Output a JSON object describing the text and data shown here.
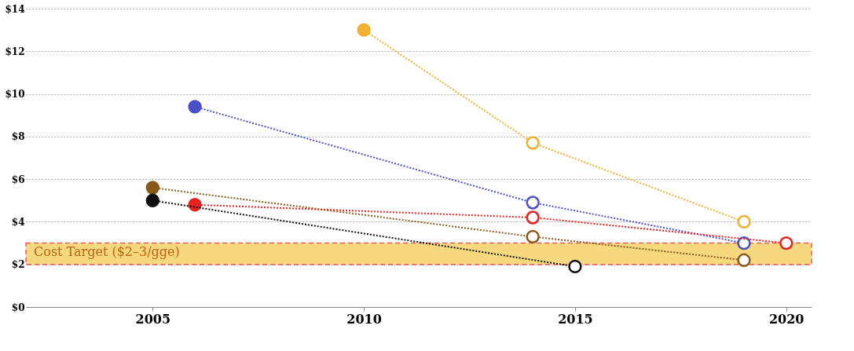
{
  "chart_data": {
    "type": "line",
    "xlim": [
      2002,
      2020.6
    ],
    "xticks": [
      2005,
      2010,
      2015,
      2020
    ],
    "ylim": [
      0,
      14
    ],
    "yticks": [
      {
        "value": 0,
        "label": "$0"
      },
      {
        "value": 2,
        "label": "$2"
      },
      {
        "value": 4,
        "label": "$4"
      },
      {
        "value": 6,
        "label": "$6"
      },
      {
        "value": 8,
        "label": "$8"
      },
      {
        "value": 10,
        "label": "$10"
      },
      {
        "value": 12,
        "label": "$12"
      },
      {
        "value": 14,
        "label": "$14"
      }
    ],
    "grid": "y",
    "line_style": "dotted",
    "marker": "circle",
    "series": [
      {
        "color": "#f0b030",
        "x": [
          2010,
          2014,
          2019
        ],
        "values": [
          13.0,
          7.7,
          4.0
        ]
      },
      {
        "color": "#4a50c8",
        "x": [
          2006,
          2014,
          2019
        ],
        "values": [
          9.4,
          4.9,
          3.0
        ]
      },
      {
        "color": "#e82020",
        "x": [
          2006,
          2014,
          2020
        ],
        "values": [
          4.8,
          4.2,
          3.0
        ]
      },
      {
        "color": "#8a5a1a",
        "x": [
          2005,
          2014,
          2019
        ],
        "values": [
          5.6,
          3.3,
          2.2
        ]
      },
      {
        "color": "#101010",
        "x": [
          2005,
          2015
        ],
        "values": [
          5.0,
          1.9
        ]
      }
    ],
    "bands": [
      {
        "axis": "y",
        "from": 2,
        "to": 3,
        "label": "Cost Target ($2–3/gge)",
        "color": "#f5d060"
      }
    ]
  }
}
